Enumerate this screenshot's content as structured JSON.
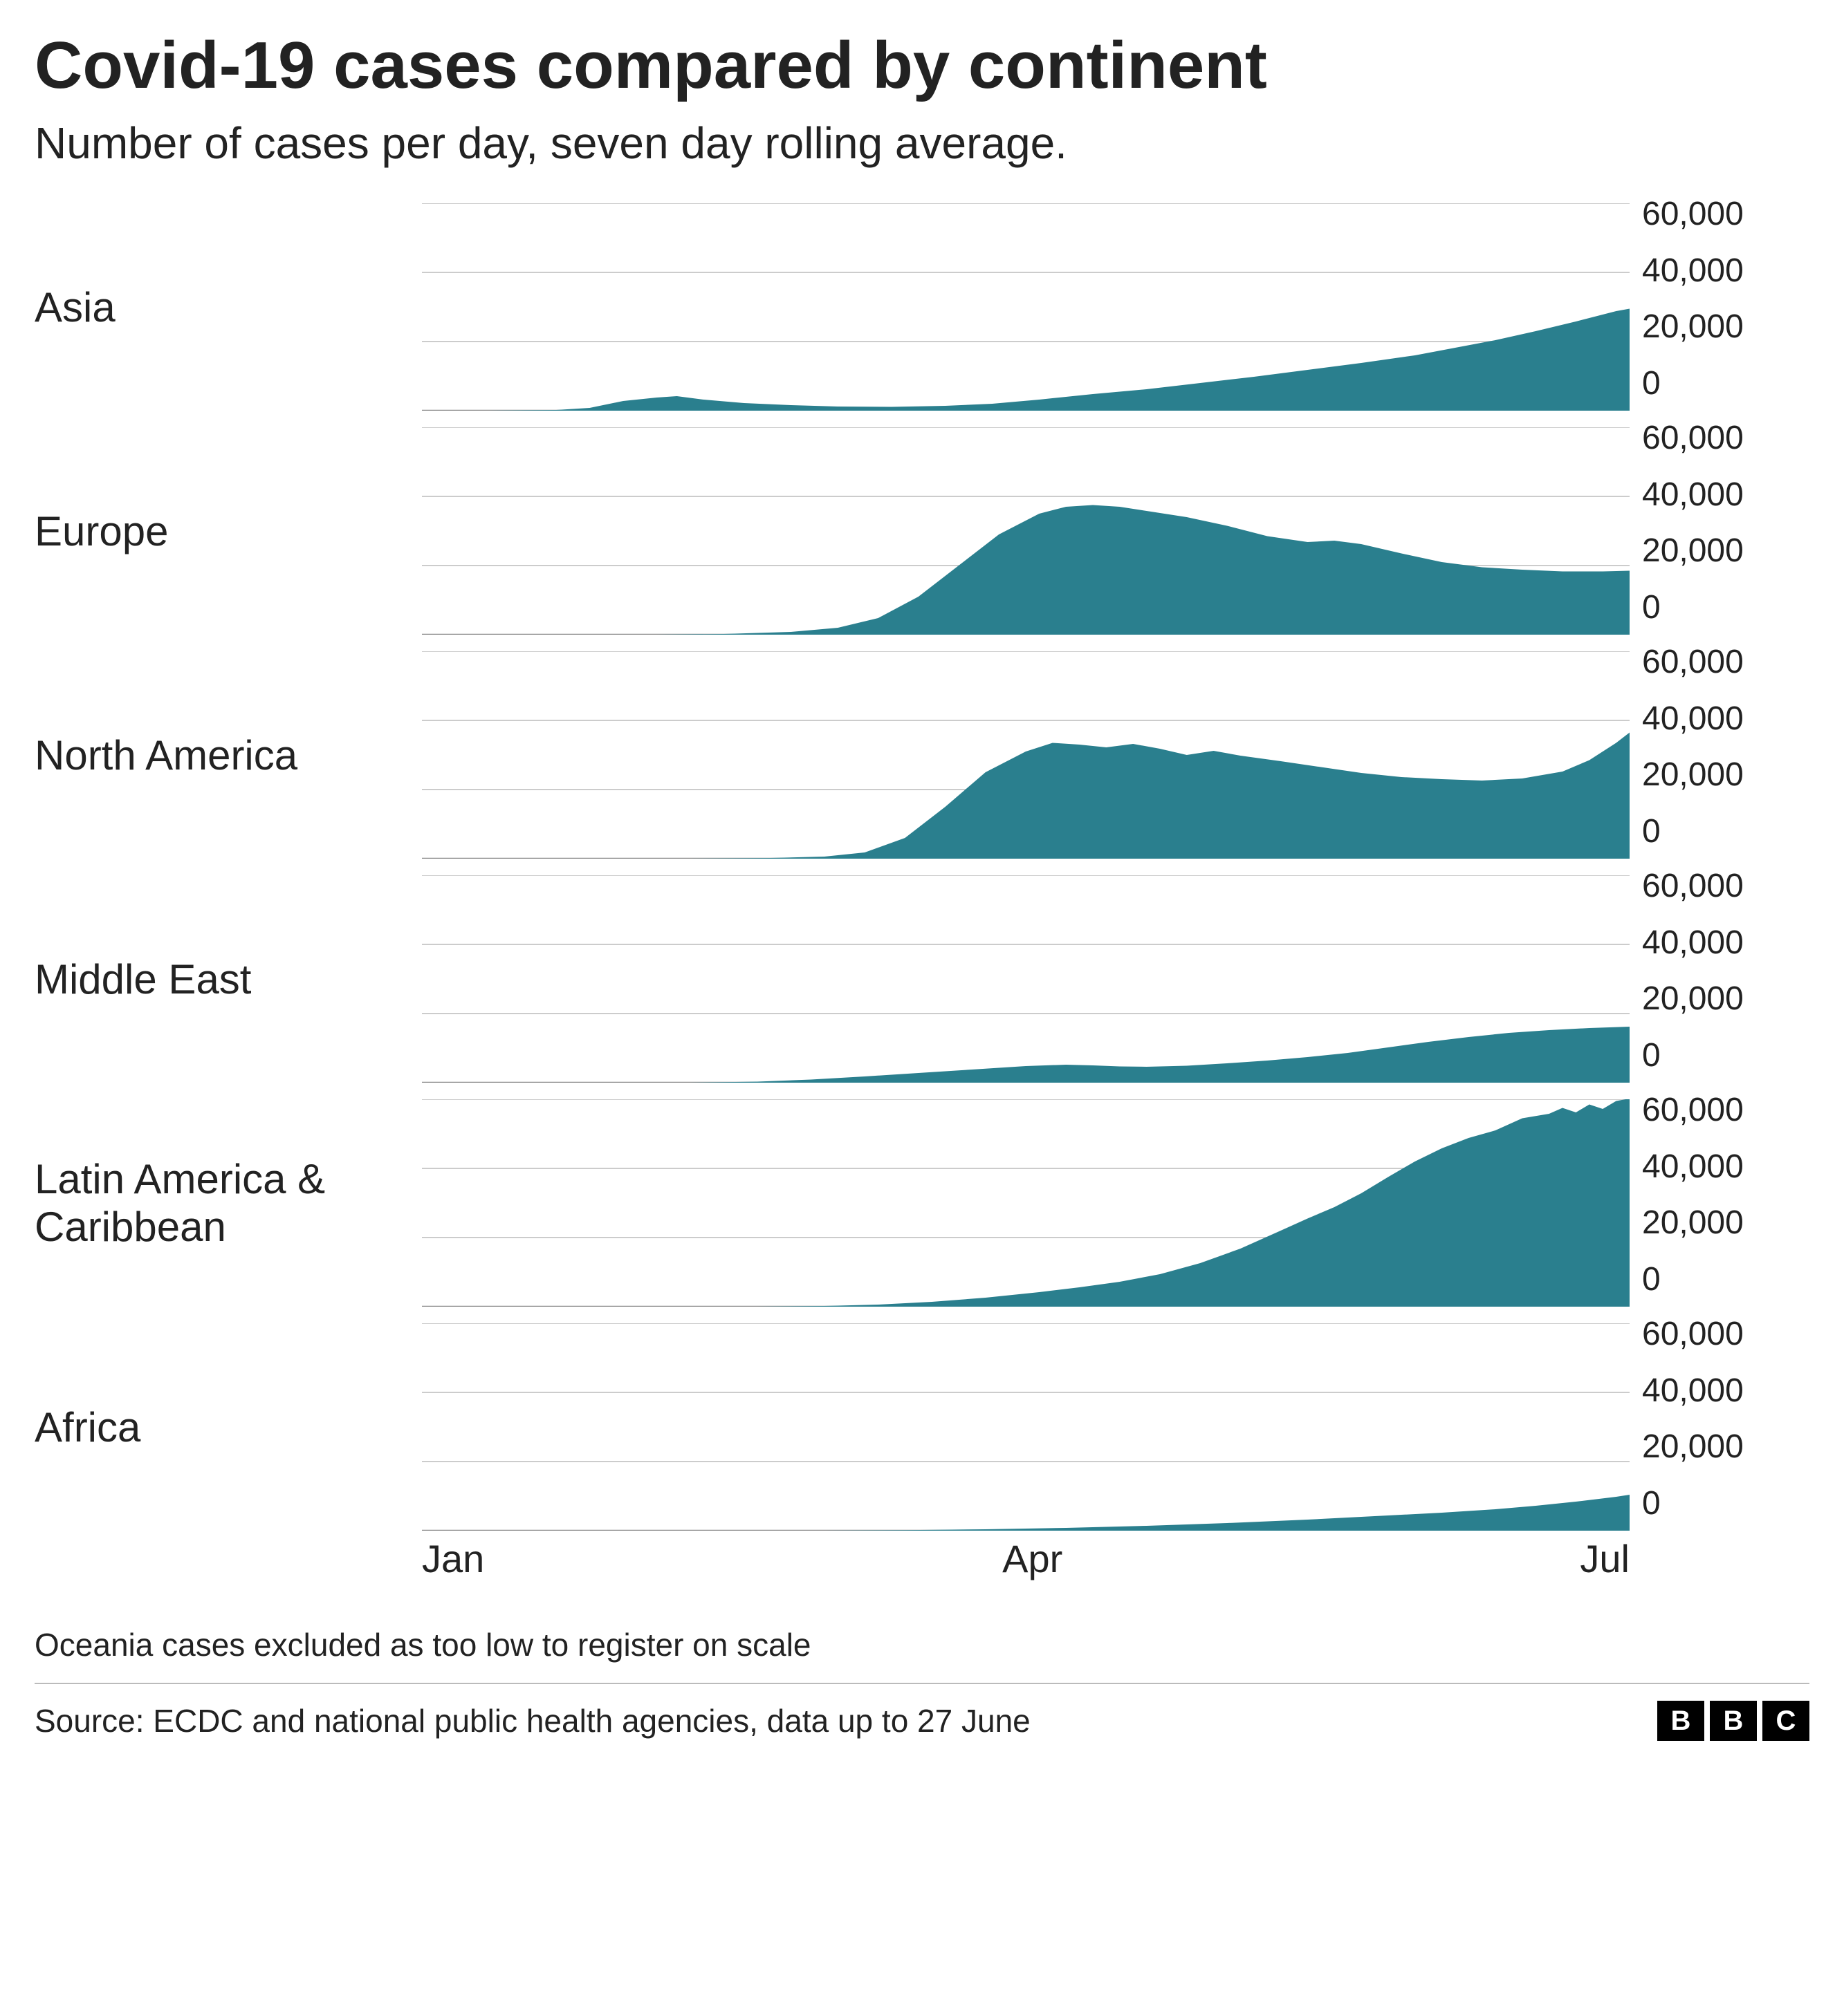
{
  "title": "Covid-19 cases compared by continent",
  "subtitle": "Number of cases per day, seven day rolling average.",
  "note": "Oceania cases excluded as too low to register on scale",
  "source": "Source: ECDC and national public health agencies, data up to 27 June",
  "logo_letters": [
    "B",
    "B",
    "C"
  ],
  "chart": {
    "type": "area-small-multiples",
    "x_domain": [
      0,
      180
    ],
    "y_domain": [
      0,
      60000
    ],
    "y_ticks": [
      60000,
      40000,
      20000,
      0
    ],
    "y_tick_labels": [
      "60,000",
      "40,000",
      "20,000",
      "0"
    ],
    "x_ticks": [
      0,
      91,
      180
    ],
    "x_tick_labels": [
      "Jan",
      "Apr",
      "Jul"
    ],
    "fill_color": "#2a7f8e",
    "grid_color": "#cccccc",
    "baseline_color": "#888888",
    "background_color": "#ffffff",
    "label_fontsize": 60,
    "tick_fontsize": 48,
    "panels": [
      {
        "label": "Asia",
        "data": [
          [
            0,
            0
          ],
          [
            10,
            0
          ],
          [
            20,
            200
          ],
          [
            25,
            800
          ],
          [
            30,
            2800
          ],
          [
            35,
            3800
          ],
          [
            38,
            4200
          ],
          [
            42,
            3200
          ],
          [
            48,
            2200
          ],
          [
            55,
            1600
          ],
          [
            62,
            1200
          ],
          [
            70,
            1100
          ],
          [
            78,
            1400
          ],
          [
            85,
            2000
          ],
          [
            92,
            3200
          ],
          [
            100,
            4800
          ],
          [
            108,
            6200
          ],
          [
            116,
            8000
          ],
          [
            124,
            9800
          ],
          [
            132,
            11800
          ],
          [
            140,
            13800
          ],
          [
            148,
            16000
          ],
          [
            154,
            18200
          ],
          [
            160,
            20400
          ],
          [
            166,
            23000
          ],
          [
            172,
            25800
          ],
          [
            178,
            28800
          ],
          [
            180,
            29500
          ]
        ]
      },
      {
        "label": "Europe",
        "data": [
          [
            0,
            0
          ],
          [
            35,
            0
          ],
          [
            45,
            200
          ],
          [
            55,
            800
          ],
          [
            62,
            2000
          ],
          [
            68,
            4800
          ],
          [
            74,
            11000
          ],
          [
            80,
            20000
          ],
          [
            86,
            29000
          ],
          [
            92,
            35000
          ],
          [
            96,
            37000
          ],
          [
            100,
            37500
          ],
          [
            104,
            37000
          ],
          [
            108,
            35800
          ],
          [
            114,
            34000
          ],
          [
            120,
            31500
          ],
          [
            126,
            28500
          ],
          [
            132,
            26800
          ],
          [
            136,
            27200
          ],
          [
            140,
            26200
          ],
          [
            146,
            23500
          ],
          [
            152,
            21000
          ],
          [
            158,
            19500
          ],
          [
            164,
            18800
          ],
          [
            170,
            18300
          ],
          [
            176,
            18300
          ],
          [
            180,
            18500
          ]
        ]
      },
      {
        "label": "North America",
        "data": [
          [
            0,
            0
          ],
          [
            40,
            0
          ],
          [
            52,
            200
          ],
          [
            60,
            600
          ],
          [
            66,
            1800
          ],
          [
            72,
            6000
          ],
          [
            78,
            15000
          ],
          [
            84,
            25000
          ],
          [
            90,
            31000
          ],
          [
            94,
            33500
          ],
          [
            98,
            33000
          ],
          [
            102,
            32200
          ],
          [
            106,
            33200
          ],
          [
            110,
            31800
          ],
          [
            114,
            30000
          ],
          [
            118,
            31200
          ],
          [
            122,
            29800
          ],
          [
            128,
            28200
          ],
          [
            134,
            26500
          ],
          [
            140,
            24800
          ],
          [
            146,
            23600
          ],
          [
            152,
            23000
          ],
          [
            158,
            22600
          ],
          [
            164,
            23200
          ],
          [
            170,
            25200
          ],
          [
            174,
            28500
          ],
          [
            178,
            33500
          ],
          [
            180,
            36500
          ]
        ]
      },
      {
        "label": "Middle East",
        "data": [
          [
            0,
            0
          ],
          [
            40,
            0
          ],
          [
            50,
            300
          ],
          [
            58,
            900
          ],
          [
            66,
            1800
          ],
          [
            74,
            2800
          ],
          [
            82,
            3800
          ],
          [
            90,
            4800
          ],
          [
            96,
            5200
          ],
          [
            100,
            5000
          ],
          [
            104,
            4700
          ],
          [
            108,
            4600
          ],
          [
            114,
            4900
          ],
          [
            120,
            5600
          ],
          [
            126,
            6400
          ],
          [
            132,
            7400
          ],
          [
            138,
            8600
          ],
          [
            144,
            10200
          ],
          [
            150,
            11800
          ],
          [
            156,
            13200
          ],
          [
            162,
            14400
          ],
          [
            168,
            15200
          ],
          [
            174,
            15800
          ],
          [
            180,
            16200
          ]
        ]
      },
      {
        "label": "Latin America & Caribbean",
        "data": [
          [
            0,
            0
          ],
          [
            50,
            0
          ],
          [
            60,
            200
          ],
          [
            68,
            600
          ],
          [
            76,
            1400
          ],
          [
            84,
            2600
          ],
          [
            92,
            4200
          ],
          [
            98,
            5600
          ],
          [
            104,
            7200
          ],
          [
            110,
            9400
          ],
          [
            116,
            12600
          ],
          [
            122,
            16800
          ],
          [
            128,
            22000
          ],
          [
            132,
            25500
          ],
          [
            136,
            28800
          ],
          [
            140,
            32800
          ],
          [
            144,
            37500
          ],
          [
            148,
            42000
          ],
          [
            152,
            45800
          ],
          [
            156,
            48800
          ],
          [
            160,
            51000
          ],
          [
            164,
            54500
          ],
          [
            168,
            55800
          ],
          [
            170,
            57500
          ],
          [
            172,
            56200
          ],
          [
            174,
            58500
          ],
          [
            176,
            57200
          ],
          [
            178,
            59500
          ],
          [
            180,
            60200
          ]
        ]
      },
      {
        "label": "Africa",
        "data": [
          [
            0,
            0
          ],
          [
            60,
            0
          ],
          [
            72,
            150
          ],
          [
            84,
            400
          ],
          [
            96,
            800
          ],
          [
            108,
            1400
          ],
          [
            120,
            2200
          ],
          [
            132,
            3200
          ],
          [
            144,
            4400
          ],
          [
            152,
            5200
          ],
          [
            160,
            6200
          ],
          [
            166,
            7200
          ],
          [
            172,
            8400
          ],
          [
            178,
            9800
          ],
          [
            180,
            10400
          ]
        ]
      }
    ]
  }
}
